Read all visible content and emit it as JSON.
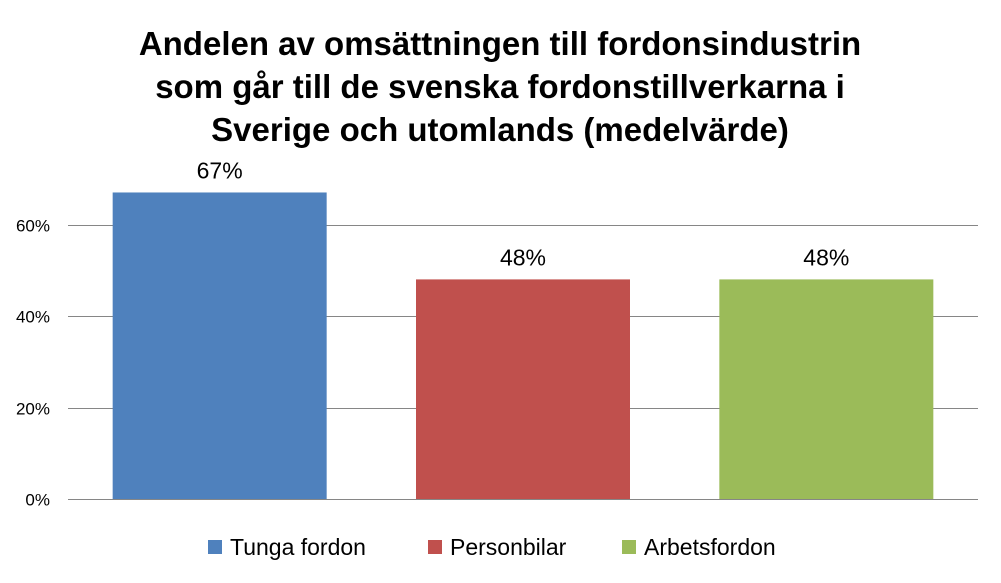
{
  "chart_data": {
    "type": "bar",
    "title_lines": [
      "Andelen av omsättningen till fordonsindustrin",
      "som går till de svenska fordonstillverkarna  i",
      "Sverige och utomlands (medelvärde)"
    ],
    "categories": [
      "Tunga fordon",
      "Personbilar",
      "Arbetsfordon"
    ],
    "values": [
      67,
      48,
      48
    ],
    "data_labels": [
      "67%",
      "48%",
      "48%"
    ],
    "colors": [
      "#4f81bd",
      "#c0504d",
      "#9bbb59"
    ],
    "ylim": [
      0,
      60
    ],
    "yticks": [
      0,
      20,
      40,
      60
    ],
    "ytick_labels": [
      "0%",
      "20%",
      "40%",
      "60%"
    ],
    "grid": true,
    "legend_position": "bottom",
    "xlabel": "",
    "ylabel": ""
  }
}
